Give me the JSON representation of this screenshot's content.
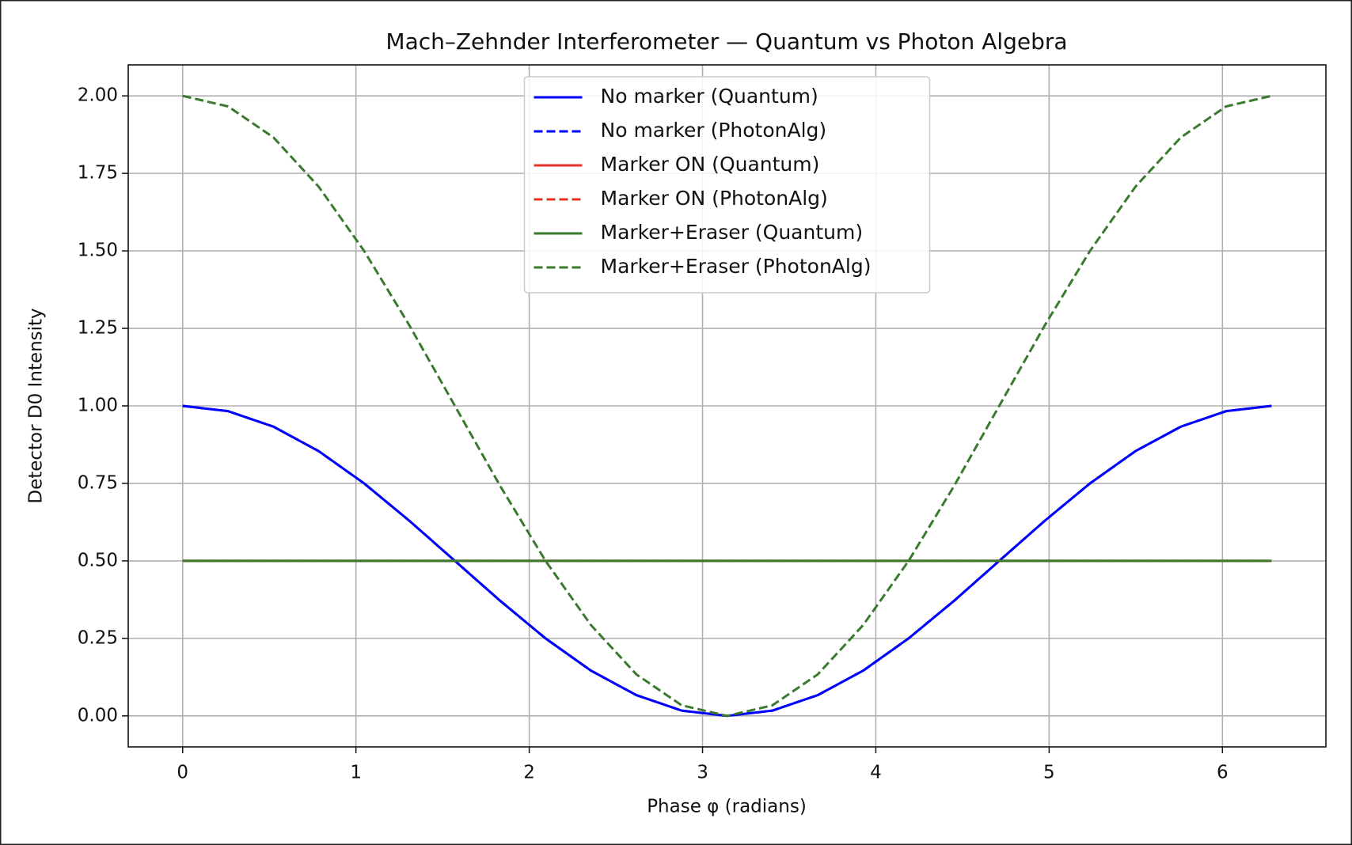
{
  "chart_data": {
    "type": "line",
    "title": "Mach–Zehnder Interferometer — Quantum vs Photon Algebra",
    "xlabel": "Phase φ (radians)",
    "ylabel": "Detector D0 Intensity",
    "x": [
      0,
      0.262,
      0.524,
      0.785,
      1.047,
      1.309,
      1.571,
      1.833,
      2.094,
      2.356,
      2.618,
      2.88,
      3.142,
      3.403,
      3.665,
      3.927,
      4.189,
      4.451,
      4.712,
      4.974,
      5.236,
      5.498,
      5.76,
      6.021,
      6.283
    ],
    "series": [
      {
        "name": "No marker (Quantum)",
        "color": "#0000ff",
        "linestyle": "solid",
        "values": [
          1,
          0.983,
          0.933,
          0.854,
          0.75,
          0.629,
          0.5,
          0.371,
          0.25,
          0.146,
          0.067,
          0.017,
          0,
          0.017,
          0.067,
          0.146,
          0.25,
          0.371,
          0.5,
          0.629,
          0.75,
          0.854,
          0.933,
          0.983,
          1
        ]
      },
      {
        "name": "No marker (PhotonAlg)",
        "color": "#0000ff",
        "linestyle": "dashed",
        "values": [
          1,
          0.983,
          0.933,
          0.854,
          0.75,
          0.629,
          0.5,
          0.371,
          0.25,
          0.146,
          0.067,
          0.017,
          0,
          0.017,
          0.067,
          0.146,
          0.25,
          0.371,
          0.5,
          0.629,
          0.75,
          0.854,
          0.933,
          0.983,
          1
        ]
      },
      {
        "name": "Marker ON (Quantum)",
        "color": "#e8302a",
        "linestyle": "solid",
        "values": [
          0.5,
          0.5,
          0.5,
          0.5,
          0.5,
          0.5,
          0.5,
          0.5,
          0.5,
          0.5,
          0.5,
          0.5,
          0.5,
          0.5,
          0.5,
          0.5,
          0.5,
          0.5,
          0.5,
          0.5,
          0.5,
          0.5,
          0.5,
          0.5,
          0.5
        ]
      },
      {
        "name": "Marker ON (PhotonAlg)",
        "color": "#e8302a",
        "linestyle": "dashed",
        "values": [
          0.5,
          0.5,
          0.5,
          0.5,
          0.5,
          0.5,
          0.5,
          0.5,
          0.5,
          0.5,
          0.5,
          0.5,
          0.5,
          0.5,
          0.5,
          0.5,
          0.5,
          0.5,
          0.5,
          0.5,
          0.5,
          0.5,
          0.5,
          0.5,
          0.5
        ]
      },
      {
        "name": "Marker+Eraser (Quantum)",
        "color": "#3a7a2e",
        "linestyle": "solid",
        "values": [
          0.5,
          0.5,
          0.5,
          0.5,
          0.5,
          0.5,
          0.5,
          0.5,
          0.5,
          0.5,
          0.5,
          0.5,
          0.5,
          0.5,
          0.5,
          0.5,
          0.5,
          0.5,
          0.5,
          0.5,
          0.5,
          0.5,
          0.5,
          0.5,
          0.5
        ]
      },
      {
        "name": "Marker+Eraser (PhotonAlg)",
        "color": "#3a7a2e",
        "linestyle": "dashed",
        "values": [
          2,
          1.966,
          1.866,
          1.707,
          1.5,
          1.259,
          1,
          0.741,
          0.5,
          0.293,
          0.134,
          0.034,
          0,
          0.034,
          0.134,
          0.293,
          0.5,
          0.741,
          1,
          1.259,
          1.5,
          1.707,
          1.866,
          1.966,
          2
        ]
      }
    ],
    "xlim": [
      -0.314,
      6.597
    ],
    "ylim": [
      -0.1,
      2.1
    ],
    "xticks": [
      0,
      1,
      2,
      3,
      4,
      5,
      6
    ],
    "yticks": [
      {
        "value": 0,
        "label": "0.00"
      },
      0.25,
      {
        "value": 0.5,
        "label": "0.50"
      },
      0.75,
      {
        "value": 1,
        "label": "1.00"
      },
      1.25,
      {
        "value": 1.5,
        "label": "1.50"
      },
      1.75,
      {
        "value": 2,
        "label": "2.00"
      }
    ],
    "grid": true,
    "legend": "upper center"
  }
}
